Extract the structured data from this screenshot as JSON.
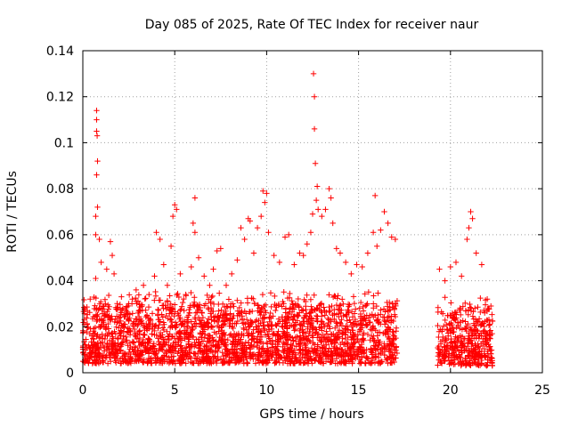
{
  "chart_data": {
    "type": "scatter",
    "title": "Day 085 of 2025, Rate Of TEC Index for receiver naur",
    "xlabel": "GPS time / hours",
    "ylabel": "ROTI / TECUs",
    "xlim": [
      0,
      25
    ],
    "ylim": [
      0,
      0.14
    ],
    "xticks": [
      0,
      5,
      10,
      15,
      20,
      25
    ],
    "yticks": [
      0,
      0.02,
      0.04,
      0.06,
      0.08,
      0.1,
      0.12,
      0.14
    ],
    "xtick_labels": [
      "0",
      "5",
      "10",
      "15",
      "20",
      "25"
    ],
    "ytick_labels": [
      "0",
      "0.02",
      "0.04",
      "0.06",
      "0.08",
      "0.1",
      "0.12",
      "0.14"
    ],
    "grid": true,
    "marker": "+",
    "colors": {
      "series": "#ff0000",
      "grid": "#a0a0a0",
      "axis": "#000000"
    },
    "series": [
      {
        "name": "ROTI",
        "points": [
          [
            0.1,
            0.021
          ],
          [
            0.4,
            0.032
          ],
          [
            0.7,
            0.041
          ],
          [
            0.75,
            0.114
          ],
          [
            0.75,
            0.11
          ],
          [
            0.75,
            0.105
          ],
          [
            0.78,
            0.103
          ],
          [
            0.8,
            0.092
          ],
          [
            0.75,
            0.086
          ],
          [
            0.8,
            0.072
          ],
          [
            0.7,
            0.068
          ],
          [
            0.7,
            0.06
          ],
          [
            0.9,
            0.058
          ],
          [
            1.0,
            0.048
          ],
          [
            1.3,
            0.045
          ],
          [
            1.5,
            0.057
          ],
          [
            1.6,
            0.051
          ],
          [
            1.7,
            0.043
          ],
          [
            2.1,
            0.033
          ],
          [
            2.5,
            0.03
          ],
          [
            2.9,
            0.036
          ],
          [
            3.3,
            0.038
          ],
          [
            3.6,
            0.034
          ],
          [
            3.9,
            0.042
          ],
          [
            4.0,
            0.061
          ],
          [
            4.2,
            0.058
          ],
          [
            4.4,
            0.047
          ],
          [
            4.6,
            0.038
          ],
          [
            4.8,
            0.055
          ],
          [
            4.9,
            0.068
          ],
          [
            5.0,
            0.073
          ],
          [
            5.1,
            0.071
          ],
          [
            5.3,
            0.043
          ],
          [
            5.6,
            0.034
          ],
          [
            5.9,
            0.046
          ],
          [
            6.0,
            0.065
          ],
          [
            6.1,
            0.061
          ],
          [
            6.1,
            0.076
          ],
          [
            6.3,
            0.05
          ],
          [
            6.6,
            0.042
          ],
          [
            6.9,
            0.038
          ],
          [
            7.1,
            0.045
          ],
          [
            7.3,
            0.053
          ],
          [
            7.5,
            0.054
          ],
          [
            7.8,
            0.038
          ],
          [
            8.1,
            0.043
          ],
          [
            8.4,
            0.049
          ],
          [
            8.6,
            0.063
          ],
          [
            8.8,
            0.058
          ],
          [
            9.0,
            0.067
          ],
          [
            9.1,
            0.066
          ],
          [
            9.3,
            0.052
          ],
          [
            9.5,
            0.063
          ],
          [
            9.7,
            0.068
          ],
          [
            9.8,
            0.079
          ],
          [
            9.9,
            0.074
          ],
          [
            10.0,
            0.078
          ],
          [
            10.1,
            0.061
          ],
          [
            10.4,
            0.051
          ],
          [
            10.7,
            0.048
          ],
          [
            11.0,
            0.059
          ],
          [
            11.2,
            0.06
          ],
          [
            11.5,
            0.047
          ],
          [
            11.8,
            0.052
          ],
          [
            12.0,
            0.051
          ],
          [
            12.2,
            0.056
          ],
          [
            12.4,
            0.061
          ],
          [
            12.5,
            0.069
          ],
          [
            12.55,
            0.13
          ],
          [
            12.6,
            0.12
          ],
          [
            12.6,
            0.106
          ],
          [
            12.65,
            0.091
          ],
          [
            12.7,
            0.075
          ],
          [
            12.75,
            0.081
          ],
          [
            12.8,
            0.071
          ],
          [
            13.0,
            0.068
          ],
          [
            13.2,
            0.071
          ],
          [
            13.4,
            0.08
          ],
          [
            13.5,
            0.076
          ],
          [
            13.6,
            0.065
          ],
          [
            13.8,
            0.054
          ],
          [
            14.0,
            0.052
          ],
          [
            14.3,
            0.048
          ],
          [
            14.6,
            0.043
          ],
          [
            14.9,
            0.047
          ],
          [
            15.2,
            0.046
          ],
          [
            15.5,
            0.052
          ],
          [
            15.8,
            0.061
          ],
          [
            15.9,
            0.077
          ],
          [
            16.0,
            0.055
          ],
          [
            16.2,
            0.062
          ],
          [
            16.4,
            0.07
          ],
          [
            16.6,
            0.065
          ],
          [
            16.8,
            0.059
          ],
          [
            17.0,
            0.058
          ],
          [
            19.4,
            0.045
          ],
          [
            19.7,
            0.04
          ],
          [
            20.0,
            0.046
          ],
          [
            20.3,
            0.048
          ],
          [
            20.6,
            0.042
          ],
          [
            20.9,
            0.058
          ],
          [
            21.0,
            0.063
          ],
          [
            21.1,
            0.07
          ],
          [
            21.2,
            0.067
          ],
          [
            21.4,
            0.052
          ],
          [
            21.7,
            0.047
          ],
          [
            22.0,
            0.032
          ],
          [
            22.2,
            0.029
          ]
        ],
        "dense_band": [
          {
            "from": 0.0,
            "to": 17.1,
            "y_min": 0.004,
            "y_max": 0.03
          },
          {
            "from": 19.3,
            "to": 22.3,
            "y_min": 0.003,
            "y_max": 0.028
          }
        ]
      }
    ]
  }
}
